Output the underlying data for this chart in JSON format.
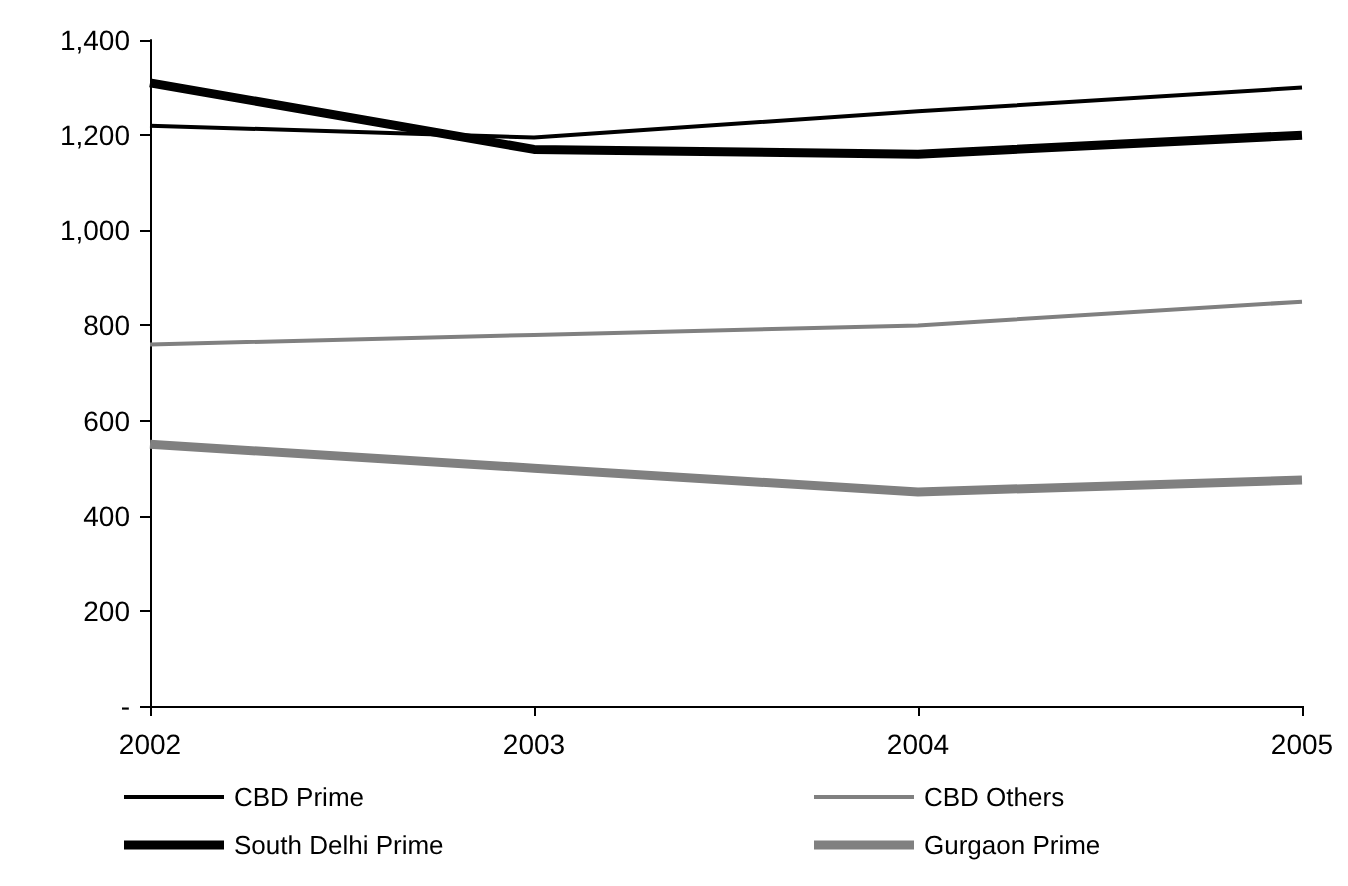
{
  "chart_data": {
    "type": "line",
    "x": [
      2002,
      2003,
      2004,
      2005
    ],
    "xlim": [
      2002,
      2005
    ],
    "xticks": [
      2002,
      2003,
      2004,
      2005
    ],
    "ylim": [
      0,
      1400
    ],
    "yticks": [
      {
        "value": 0,
        "label": "-"
      },
      200,
      400,
      600,
      800,
      {
        "value": 1000,
        "label": "1,000"
      },
      {
        "value": 1200,
        "label": "1,200"
      },
      {
        "value": 1400,
        "label": "1,400"
      }
    ],
    "series": [
      {
        "name": "CBD Prime",
        "color": "#000000",
        "values": [
          1220,
          1195,
          1250,
          1300
        ]
      },
      {
        "name": "CBD Others",
        "color": "#808080",
        "values": [
          760,
          780,
          800,
          850
        ]
      },
      {
        "name": "South Delhi Prime",
        "color": "#000000",
        "values": [
          1310,
          1170,
          1160,
          1200
        ]
      },
      {
        "name": "Gurgaon Prime",
        "color": "#808080",
        "values": [
          550,
          500,
          450,
          475
        ]
      }
    ],
    "grid": false,
    "legend": "bottom",
    "marker": "none",
    "line_style": "solid"
  }
}
